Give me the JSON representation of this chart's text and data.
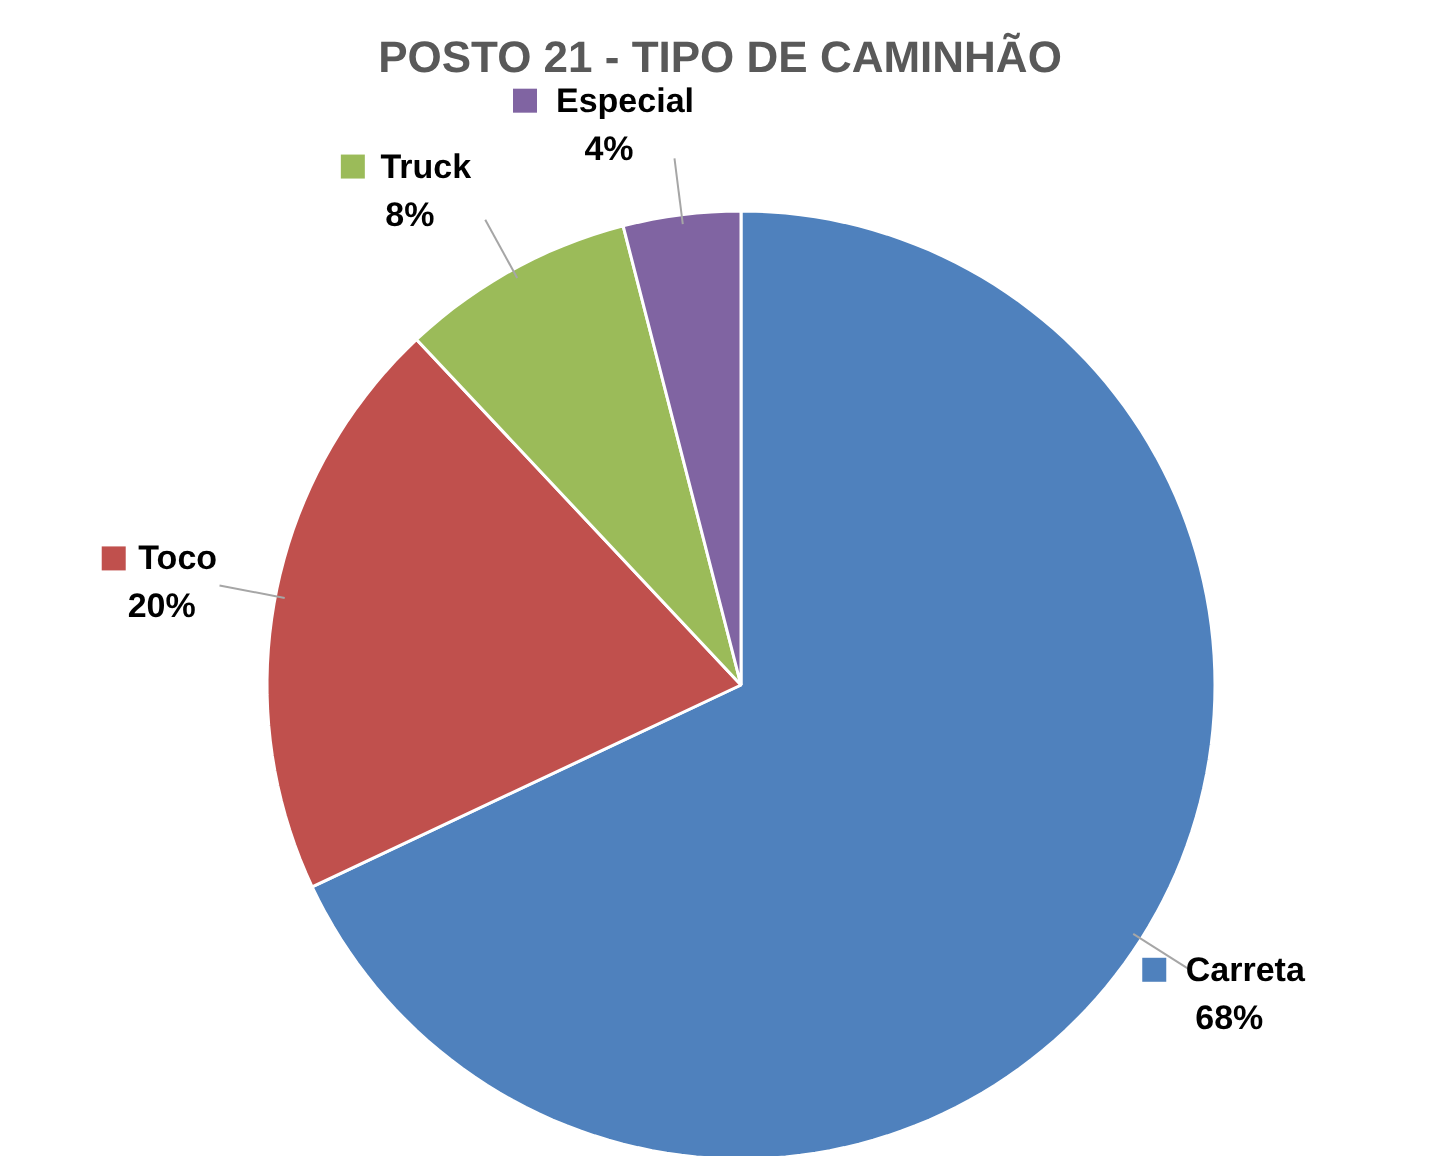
{
  "chart_data": {
    "type": "pie",
    "title": "POSTO 21 - TIPO DE CAMINHÃO",
    "categories": [
      "Carreta",
      "Toco",
      "Truck",
      "Especial"
    ],
    "values": [
      68,
      20,
      8,
      4
    ],
    "colors": [
      "#4f81bd",
      "#c0504d",
      "#9bbb59",
      "#8064a2"
    ],
    "value_labels": [
      "68%",
      "20%",
      "8%",
      "4%"
    ],
    "legend": "left"
  }
}
